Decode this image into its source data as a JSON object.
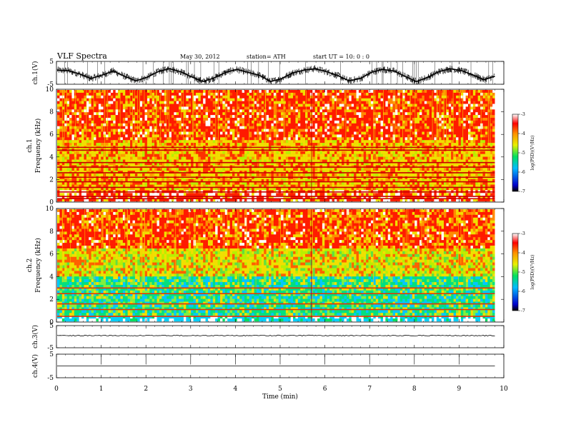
{
  "header": {
    "title": "VLF  Spectra",
    "date": "May 30, 2012",
    "station": "station= ATH",
    "start_ut": "start  UT  =    10: 0  : 0"
  },
  "chart_data": [
    {
      "type": "line",
      "name": "ch1-waveform",
      "ylabel": "ch.1(V)",
      "ylim": [
        -5,
        5
      ],
      "yticks": [
        "5",
        "-5"
      ],
      "description_values": [
        1.2,
        0.9,
        -0.5,
        -2.5,
        -1.0,
        0.8,
        -1.5,
        -3.5,
        -2.0,
        0.5,
        1.8,
        0.5,
        -1.8,
        -3.8,
        -2.2,
        0.2,
        1.5,
        0.2,
        -1.0,
        -3.8,
        -2.5,
        0.0,
        1.2,
        1.8,
        0.5,
        -1.2,
        -3.5,
        -2.5,
        0.2,
        1.5,
        0.8,
        -1.5,
        -3.8,
        -2.0,
        0.5,
        1.8,
        1.0,
        -0.8,
        -3.0,
        -1.5
      ]
    },
    {
      "type": "heatmap",
      "name": "ch1-spectrogram",
      "ylabel": "ch.1",
      "ylabel2": "Frequency  (kHz)",
      "ylim": [
        0,
        10
      ],
      "yticks": [
        "10",
        "8",
        "6",
        "4",
        "2",
        "0"
      ],
      "colorbar": {
        "label": "log(PSD)(V²/Hz)",
        "ticks": [
          "-3",
          "-4",
          "-5",
          "-6",
          "-7"
        ],
        "range": [
          -7,
          -3
        ]
      },
      "lines_khz": [
        4.85,
        4.6,
        3.5,
        3.1,
        2.6,
        2.2,
        1.8,
        1.3,
        0.9,
        0.5,
        0.3
      ]
    },
    {
      "type": "heatmap",
      "name": "ch2-spectrogram",
      "ylabel": "ch.2",
      "ylabel2": "Frequency  (kHz)",
      "ylim": [
        0,
        10
      ],
      "yticks": [
        "10",
        "8",
        "6",
        "4",
        "2",
        "0"
      ],
      "colorbar": {
        "label": "log(PSD)(V²/Hz)",
        "ticks": [
          "-3",
          "-4",
          "-5",
          "-6",
          "-7"
        ],
        "range": [
          -7,
          -3
        ]
      },
      "lines_khz": [
        3.0,
        2.5,
        1.6,
        1.1,
        0.5
      ]
    },
    {
      "type": "line",
      "name": "ch3-waveform",
      "ylabel": "ch.3(V)",
      "ylim": [
        -5,
        5
      ],
      "yticks": [
        "5",
        "-5"
      ],
      "level": 0.5
    },
    {
      "type": "line",
      "name": "ch4-waveform",
      "ylabel": "ch.4(V)",
      "ylim": [
        -5,
        5
      ],
      "yticks": [
        "5",
        "-5"
      ],
      "level": 0.0
    }
  ],
  "xaxis": {
    "label": "Time  (min)",
    "ticks": [
      "0",
      "1",
      "2",
      "3",
      "4",
      "5",
      "6",
      "7",
      "8",
      "9",
      "10"
    ],
    "range": [
      0,
      10
    ],
    "data_end": 9.8
  }
}
